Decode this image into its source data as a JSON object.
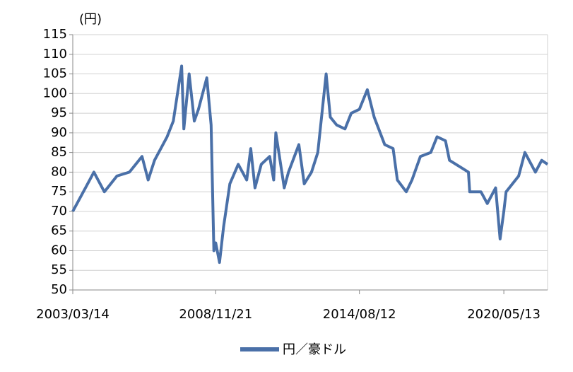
{
  "chart_data": {
    "type": "line",
    "y_unit": "(円)",
    "x": [
      "2003/03/14",
      "2003/09/15",
      "2004/01/15",
      "2004/06/15",
      "2004/12/15",
      "2005/06/15",
      "2005/12/15",
      "2006/03/15",
      "2006/06/15",
      "2006/12/15",
      "2007/03/15",
      "2007/07/15",
      "2007/08/15",
      "2007/11/01",
      "2008/01/15",
      "2008/03/15",
      "2008/07/15",
      "2008/09/15",
      "2008/10/25",
      "2008/11/21",
      "2009/01/15",
      "2009/03/15",
      "2009/06/15",
      "2009/10/15",
      "2010/02/15",
      "2010/04/15",
      "2010/06/15",
      "2010/09/15",
      "2011/01/15",
      "2011/03/15",
      "2011/04/15",
      "2011/08/15",
      "2011/10/15",
      "2012/03/15",
      "2012/06/01",
      "2012/09/15",
      "2012/12/15",
      "2013/04/15",
      "2013/06/15",
      "2013/09/15",
      "2014/01/15",
      "2014/04/15",
      "2014/08/12",
      "2014/12/05",
      "2015/03/15",
      "2015/08/15",
      "2015/12/15",
      "2016/02/15",
      "2016/06/24",
      "2016/09/15",
      "2017/01/15",
      "2017/06/15",
      "2017/09/15",
      "2018/01/15",
      "2018/03/15",
      "2018/09/15",
      "2018/12/15",
      "2019/01/03",
      "2019/06/15",
      "2019/09/15",
      "2020/01/15",
      "2020/03/19",
      "2020/05/13",
      "2020/06/15",
      "2020/12/15",
      "2021/03/15",
      "2021/08/15",
      "2021/11/15",
      "2022/02/08"
    ],
    "series": [
      {
        "name": "円／豪ドル",
        "color": "#4a70a8",
        "values": [
          70,
          76,
          80,
          75,
          79,
          80,
          84,
          78,
          83,
          89,
          93,
          107,
          91,
          105,
          93,
          96,
          104,
          92,
          60,
          62,
          57,
          66,
          77,
          82,
          78,
          86,
          76,
          82,
          84,
          78,
          90,
          76,
          80,
          87,
          77,
          80,
          85,
          105,
          94,
          92,
          91,
          95,
          96,
          101,
          94,
          87,
          86,
          78,
          75,
          78,
          84,
          85,
          89,
          88,
          83,
          81,
          80,
          75,
          75,
          72,
          76,
          63,
          70,
          75,
          79,
          85,
          80,
          83,
          82
        ]
      }
    ],
    "xlim": [
      "2003/03/14",
      "2022/02/08"
    ],
    "xticks": [
      "2003/03/14",
      "2008/11/21",
      "2014/08/12",
      "2020/05/13"
    ],
    "ylim": [
      50,
      115
    ],
    "yticks": [
      50,
      55,
      60,
      65,
      70,
      75,
      80,
      85,
      90,
      95,
      100,
      105,
      110,
      115
    ],
    "grid": true
  }
}
